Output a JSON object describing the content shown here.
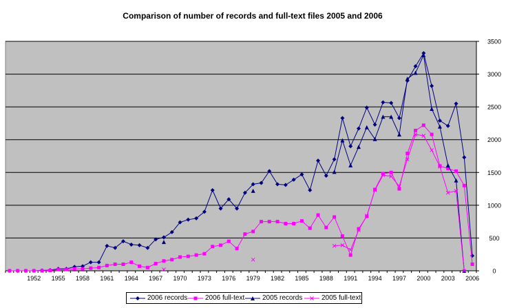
{
  "chart_data": {
    "type": "line",
    "title": "Comparison of number of records and full-text files 2005 and 2006",
    "xlabel": "",
    "ylabel": "",
    "x_start": 1949,
    "x_end": 2006,
    "x_tick_labels": [
      "1952",
      "1955",
      "1958",
      "1961",
      "1964",
      "1967",
      "1970",
      "1973",
      "1976",
      "1979",
      "1982",
      "1985",
      "1988",
      "1991",
      "1994",
      "1997",
      "2000",
      "2003",
      "2006"
    ],
    "ylim": [
      0,
      3500
    ],
    "y_ticks": [
      0,
      500,
      1000,
      1500,
      2000,
      2500,
      3000,
      3500
    ],
    "y_axis_position": "right",
    "grid": "horizontal",
    "plot_background": "#c0c0c0",
    "legend_position": "bottom",
    "series": [
      {
        "name": "2006 records",
        "color": "#000080",
        "marker": "diamond",
        "points": [
          [
            1949,
            0
          ],
          [
            1950,
            0
          ],
          [
            1951,
            0
          ],
          [
            1952,
            0
          ],
          [
            1953,
            5
          ],
          [
            1954,
            10
          ],
          [
            1955,
            30
          ],
          [
            1956,
            30
          ],
          [
            1957,
            60
          ],
          [
            1958,
            70
          ],
          [
            1959,
            130
          ],
          [
            1960,
            130
          ],
          [
            1961,
            380
          ],
          [
            1962,
            350
          ],
          [
            1963,
            450
          ],
          [
            1964,
            400
          ],
          [
            1965,
            390
          ],
          [
            1966,
            350
          ],
          [
            1967,
            480
          ],
          [
            1968,
            510
          ],
          [
            1969,
            590
          ],
          [
            1970,
            740
          ],
          [
            1971,
            780
          ],
          [
            1972,
            800
          ],
          [
            1973,
            900
          ],
          [
            1974,
            1230
          ],
          [
            1975,
            950
          ],
          [
            1976,
            1090
          ],
          [
            1977,
            950
          ],
          [
            1978,
            1190
          ],
          [
            1979,
            1320
          ],
          [
            1980,
            1340
          ],
          [
            1981,
            1520
          ],
          [
            1982,
            1320
          ],
          [
            1983,
            1310
          ],
          [
            1984,
            1390
          ],
          [
            1985,
            1470
          ],
          [
            1986,
            1230
          ],
          [
            1987,
            1680
          ],
          [
            1988,
            1450
          ],
          [
            1989,
            1700
          ],
          [
            1990,
            2330
          ],
          [
            1991,
            1900
          ],
          [
            1992,
            2170
          ],
          [
            1993,
            2490
          ],
          [
            1994,
            2230
          ],
          [
            1995,
            2570
          ],
          [
            1996,
            2560
          ],
          [
            1997,
            2330
          ],
          [
            1998,
            2900
          ],
          [
            1999,
            3120
          ],
          [
            2000,
            3320
          ],
          [
            2001,
            2820
          ],
          [
            2002,
            2290
          ],
          [
            2003,
            2210
          ],
          [
            2004,
            2550
          ],
          [
            2005,
            1730
          ],
          [
            2006,
            230
          ]
        ]
      },
      {
        "name": "2006 full-text",
        "color": "#ff00ff",
        "marker": "square",
        "points": [
          [
            1949,
            0
          ],
          [
            1950,
            0
          ],
          [
            1951,
            0
          ],
          [
            1952,
            0
          ],
          [
            1953,
            0
          ],
          [
            1954,
            5
          ],
          [
            1955,
            20
          ],
          [
            1956,
            20
          ],
          [
            1957,
            30
          ],
          [
            1958,
            30
          ],
          [
            1959,
            40
          ],
          [
            1960,
            50
          ],
          [
            1961,
            80
          ],
          [
            1962,
            100
          ],
          [
            1963,
            100
          ],
          [
            1964,
            130
          ],
          [
            1965,
            70
          ],
          [
            1966,
            50
          ],
          [
            1967,
            110
          ],
          [
            1968,
            150
          ],
          [
            1969,
            170
          ],
          [
            1970,
            210
          ],
          [
            1971,
            220
          ],
          [
            1972,
            240
          ],
          [
            1973,
            260
          ],
          [
            1974,
            370
          ],
          [
            1975,
            390
          ],
          [
            1976,
            450
          ],
          [
            1977,
            340
          ],
          [
            1978,
            560
          ],
          [
            1979,
            600
          ],
          [
            1980,
            750
          ],
          [
            1981,
            750
          ],
          [
            1982,
            750
          ],
          [
            1983,
            720
          ],
          [
            1984,
            720
          ],
          [
            1985,
            760
          ],
          [
            1986,
            650
          ],
          [
            1987,
            850
          ],
          [
            1988,
            660
          ],
          [
            1989,
            820
          ],
          [
            1990,
            530
          ],
          [
            1991,
            240
          ],
          [
            1992,
            640
          ],
          [
            1993,
            830
          ],
          [
            1994,
            1240
          ],
          [
            1995,
            1480
          ],
          [
            1996,
            1500
          ],
          [
            1997,
            1250
          ],
          [
            1998,
            1790
          ],
          [
            1999,
            2140
          ],
          [
            2000,
            2220
          ],
          [
            2001,
            2080
          ],
          [
            2002,
            1600
          ],
          [
            2003,
            1560
          ],
          [
            2004,
            1520
          ],
          [
            2005,
            1300
          ],
          [
            2006,
            100
          ]
        ]
      },
      {
        "name": "2005 records",
        "color": "#000080",
        "marker": "triangle",
        "points": [
          [
            1968,
            440
          ],
          [
            null,
            null
          ],
          [
            1979,
            1220
          ],
          [
            null,
            null
          ],
          [
            1989,
            1510
          ],
          [
            1990,
            1990
          ],
          [
            1991,
            1610
          ],
          [
            1992,
            1890
          ],
          [
            1993,
            2190
          ],
          [
            1994,
            2010
          ],
          [
            1995,
            2350
          ],
          [
            1996,
            2350
          ],
          [
            1997,
            2080
          ],
          [
            1998,
            2930
          ],
          [
            1999,
            3020
          ],
          [
            2000,
            3290
          ],
          [
            2001,
            2470
          ],
          [
            2002,
            2200
          ],
          [
            2003,
            1610
          ],
          [
            2004,
            1380
          ],
          [
            2005,
            0
          ]
        ]
      },
      {
        "name": "2005 full-text",
        "color": "#ff00ff",
        "marker": "x",
        "points": [
          [
            1968,
            20
          ],
          [
            null,
            null
          ],
          [
            1979,
            170
          ],
          [
            null,
            null
          ],
          [
            1989,
            380
          ],
          [
            1990,
            390
          ],
          [
            1991,
            320
          ],
          [
            1992,
            620
          ],
          [
            1993,
            840
          ],
          [
            1994,
            1230
          ],
          [
            1995,
            1460
          ],
          [
            1996,
            1440
          ],
          [
            1997,
            1290
          ],
          [
            1998,
            1700
          ],
          [
            1999,
            2080
          ],
          [
            2000,
            2060
          ],
          [
            2001,
            1840
          ],
          [
            2002,
            1590
          ],
          [
            2003,
            1190
          ],
          [
            2004,
            1220
          ],
          [
            2005,
            0
          ]
        ]
      }
    ]
  }
}
